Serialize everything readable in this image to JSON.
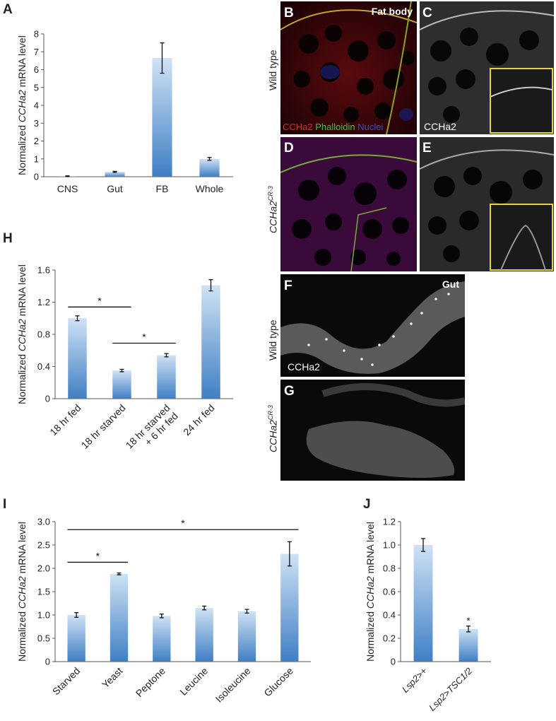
{
  "panels": {
    "A": "A",
    "B": "B",
    "C": "C",
    "D": "D",
    "E": "E",
    "F": "F",
    "G": "G",
    "H": "H",
    "I": "I",
    "J": "J"
  },
  "microscopy": {
    "fat_body_label": "Fat body",
    "gut_label": "Gut",
    "row_wild_type": "Wild type",
    "row_mutant": "CCHa2",
    "row_mutant_sup": "CR-3",
    "stain_ccha2": "CCHa2",
    "stain_phalloidin": "Phalloidin",
    "stain_nuclei": "Nuclei",
    "colors": {
      "ccha2": "#e0282a",
      "phalloidin": "#3ac63a",
      "nuclei": "#3a4bd8",
      "inset_border": "#e8d23a"
    }
  },
  "chart_data": [
    {
      "id": "A",
      "type": "bar",
      "ylabel_prefix": "Normalized ",
      "ylabel_gene": "CCHa2",
      "ylabel_suffix": " mRNA level",
      "categories": [
        "CNS",
        "Gut",
        "FB",
        "Whole"
      ],
      "values": [
        0.03,
        0.27,
        6.65,
        1.0
      ],
      "errors": [
        0.02,
        0.03,
        0.85,
        0.08
      ],
      "ylim": [
        0,
        8
      ],
      "yticks": [
        "0",
        "1",
        "2",
        "3",
        "4",
        "5",
        "6",
        "7",
        "8"
      ]
    },
    {
      "id": "H",
      "type": "bar",
      "ylabel_prefix": "Normalized ",
      "ylabel_gene": "CCHa2",
      "ylabel_suffix": " mRNA level",
      "categories": [
        "18 hr fed",
        "18 hr starved",
        "18 hr starved\n+ 6 hr fed",
        "24 hr fed"
      ],
      "values": [
        1.0,
        0.35,
        0.54,
        1.41
      ],
      "errors": [
        0.03,
        0.015,
        0.02,
        0.07
      ],
      "ylim": [
        0,
        1.6
      ],
      "yticks": [
        "0",
        "0.4",
        "0.8",
        "1.2",
        "1.6"
      ],
      "significance": [
        {
          "from": 0,
          "to": 1,
          "y": 1.14,
          "label": "*"
        },
        {
          "from": 1,
          "to": 2,
          "y": 0.69,
          "label": "*"
        }
      ]
    },
    {
      "id": "I",
      "type": "bar",
      "ylabel_prefix": "Normalized ",
      "ylabel_gene": "CCHa2",
      "ylabel_suffix": " mRNA level",
      "categories": [
        "Starved",
        "Yeast",
        "Peptone",
        "Leucine",
        "Isoleucine",
        "Glucose"
      ],
      "values": [
        1.0,
        1.88,
        0.98,
        1.15,
        1.08,
        2.31
      ],
      "errors": [
        0.05,
        0.02,
        0.04,
        0.04,
        0.04,
        0.26
      ],
      "ylim": [
        0,
        3.0
      ],
      "yticks": [
        "0",
        "0.5",
        "1.0",
        "1.5",
        "2.0",
        "2.5",
        "3.0"
      ],
      "significance": [
        {
          "from": 0,
          "to": 1,
          "y": 2.13,
          "label": "*"
        },
        {
          "from": 0,
          "to": 5,
          "y": 2.83,
          "label": "*"
        }
      ]
    },
    {
      "id": "J",
      "type": "bar",
      "ylabel_prefix": "Normalized ",
      "ylabel_gene": "CCHa2",
      "ylabel_suffix": " mRNA level",
      "categories": [
        "Lsp2>+",
        "Lsp2>TSC1/2"
      ],
      "values": [
        1.0,
        0.28
      ],
      "errors": [
        0.055,
        0.025
      ],
      "ylim": [
        0,
        1.2
      ],
      "yticks": [
        "0",
        "0.2",
        "0.4",
        "0.6",
        "0.8",
        "1.0",
        "1.2"
      ],
      "bar_asterisk": [
        null,
        "*"
      ]
    }
  ]
}
